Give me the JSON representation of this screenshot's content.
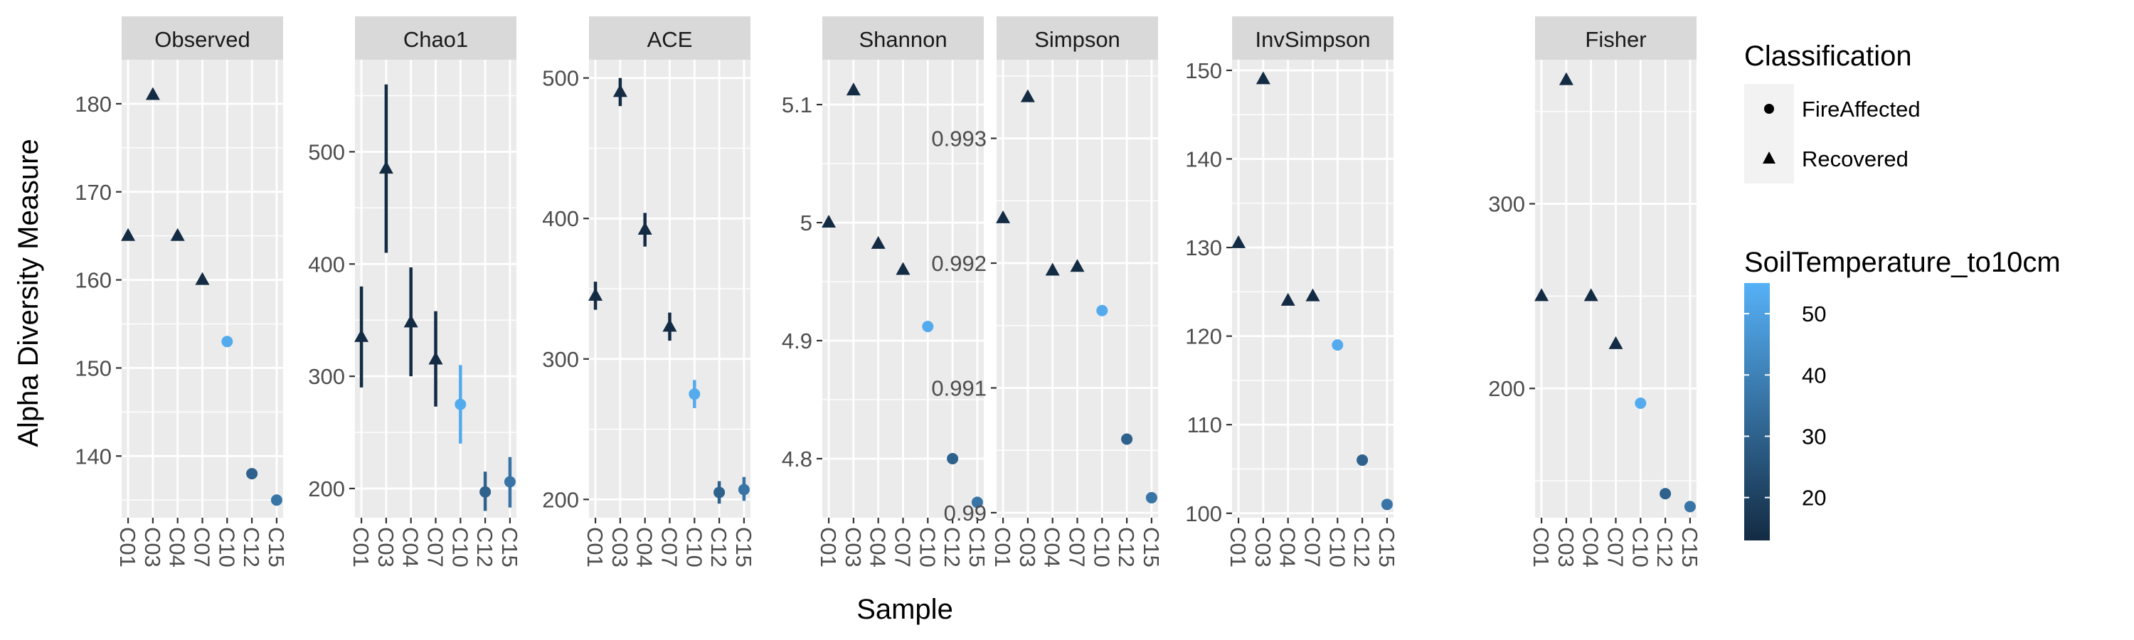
{
  "chart_data": {
    "type": "scatter",
    "xlabel": "Sample",
    "ylabel": "Alpha Diversity Measure",
    "samples": [
      "C01",
      "C03",
      "C04",
      "C07",
      "C10",
      "C12",
      "C15"
    ],
    "classification": [
      "Recovered",
      "Recovered",
      "Recovered",
      "Recovered",
      "FireAffected",
      "FireAffected",
      "FireAffected"
    ],
    "soil_temperature": [
      14,
      14,
      14,
      14,
      53,
      30,
      36
    ],
    "facets": [
      {
        "name": "Observed",
        "ylim": [
          133,
          185
        ],
        "ticks": [
          140,
          150,
          160,
          170,
          180
        ],
        "values": [
          165,
          181,
          165,
          160,
          153,
          138,
          135
        ]
      },
      {
        "name": "Chao1",
        "ylim": [
          174,
          582
        ],
        "ticks": [
          200,
          300,
          400,
          500
        ],
        "values": [
          335,
          485,
          348,
          315,
          275,
          197,
          206
        ],
        "errors": [
          [
            290,
            380
          ],
          [
            410,
            560
          ],
          [
            300,
            397
          ],
          [
            273,
            358
          ],
          [
            240,
            310
          ],
          [
            180,
            215
          ],
          [
            183,
            228
          ]
        ]
      },
      {
        "name": "ACE",
        "ylim": [
          187,
          513
        ],
        "ticks": [
          200,
          300,
          400,
          500
        ],
        "values": [
          345,
          490,
          392,
          323,
          275,
          205,
          207
        ],
        "errors": [
          [
            335,
            355
          ],
          [
            480,
            500
          ],
          [
            380,
            404
          ],
          [
            313,
            333
          ],
          [
            265,
            285
          ],
          [
            197,
            213
          ],
          [
            199,
            216
          ]
        ]
      },
      {
        "name": "Shannon",
        "ylim": [
          4.75,
          5.138
        ],
        "ticks": [
          4.8,
          4.9,
          5.0,
          5.1
        ],
        "values": [
          5.0,
          5.112,
          4.982,
          4.96,
          4.912,
          4.8,
          4.763
        ]
      },
      {
        "name": "Simpson",
        "ylim": [
          0.98996,
          0.99363
        ],
        "ticks": [
          0.99,
          0.991,
          0.992,
          0.993
        ],
        "values": [
          0.99236,
          0.99333,
          0.99194,
          0.99197,
          0.99162,
          0.99059,
          0.99012
        ]
      },
      {
        "name": "InvSimpson",
        "ylim": [
          99.5,
          151.2
        ],
        "ticks": [
          100,
          110,
          120,
          130,
          140,
          150
        ],
        "values": [
          130.5,
          149,
          124,
          124.5,
          119,
          106,
          101
        ]
      },
      {
        "name": "Fisher",
        "ylim": [
          130,
          378
        ],
        "ticks": [
          200,
          300
        ],
        "values": [
          250,
          367,
          250,
          224,
          192,
          143,
          136
        ]
      }
    ],
    "legend": {
      "shape_title": "Classification",
      "shape_entries": [
        "FireAffected",
        "Recovered"
      ],
      "color_title": "SoilTemperature_to10cm",
      "color_ticks": [
        20,
        30,
        40,
        50
      ],
      "color_range": [
        13,
        55
      ],
      "color_low": "#132B43",
      "color_high": "#56B1F7"
    },
    "colors": {
      "panel_bg": "#EBEBEB",
      "grid": "#FFFFFF",
      "strip_bg": "#D9D9D9",
      "recovered": "#132B43"
    }
  }
}
